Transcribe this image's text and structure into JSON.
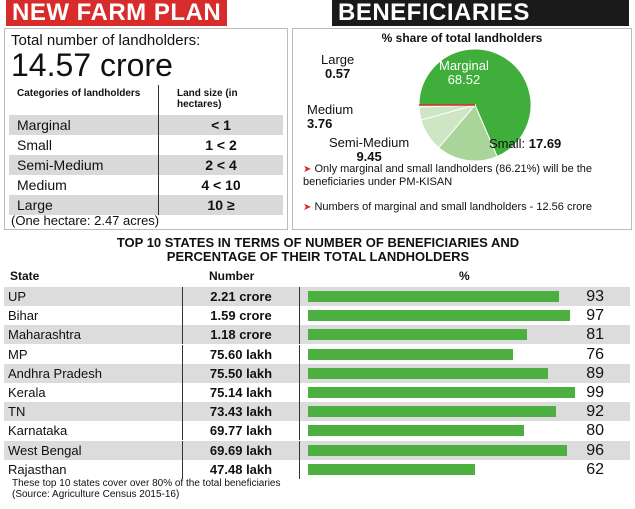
{
  "header": {
    "title_left": "NEW FARM PLAN",
    "title_right": "BENEFICIARIES"
  },
  "landholders": {
    "total_label": "Total number of landholders:",
    "total_value": "14.57 crore",
    "table_header": {
      "category": "Categories of landholders",
      "size": "Land size (in hectares)"
    },
    "rows": [
      {
        "category": "Marginal",
        "size": "< 1"
      },
      {
        "category": "Small",
        "size": "1 < 2"
      },
      {
        "category": "Semi-Medium",
        "size": "2 < 4"
      },
      {
        "category": "Medium",
        "size": "4 < 10"
      },
      {
        "category": "Large",
        "size": "10 ≥"
      }
    ],
    "note": "(One hectare: 2.47 acres)"
  },
  "pie": {
    "notes": [
      "Only marginal and small landholders (86.21%) will be the beneficiaries under PM-KISAN",
      "Numbers of marginal and small landholders - 12.56 crore"
    ]
  },
  "states_section": {
    "title_line1": "TOP 10 STATES IN TERMS OF NUMBER OF BENEFICIARIES AND",
    "title_line2": "PERCENTAGE OF THEIR TOTAL LANDHOLDERS",
    "col_state": "State",
    "col_number": "Number",
    "col_pct": "%",
    "footnote_line1": "These top 10 states cover over 80% of the total beneficiaries",
    "footnote_line2": "(Source: Agriculture Census 2015-16)"
  },
  "colors": {
    "accent_red": "#d82b2b",
    "bar_green": "#4daf3f",
    "pie_dark": "#3fae3a",
    "pie_light": "#a9d49a",
    "pie_lighter": "#cfe6c4"
  },
  "chart_data": [
    {
      "type": "pie",
      "title": "% share of total landholders",
      "labels": [
        "Marginal",
        "Small",
        "Semi-Medium",
        "Medium",
        "Large"
      ],
      "values": [
        68.52,
        17.69,
        9.45,
        3.76,
        0.57
      ]
    },
    {
      "type": "bar",
      "categories": [
        "UP",
        "Bihar",
        "Maharashtra",
        "MP",
        "Andhra Pradesh",
        "Kerala",
        "TN",
        "Karnataka",
        "West Bengal",
        "Rajasthan"
      ],
      "numbers": [
        "2.21 crore",
        "1.59 crore",
        "1.18 crore",
        "75.60 lakh",
        "75.50 lakh",
        "75.14 lakh",
        "73.43 lakh",
        "69.77 lakh",
        "69.69 lakh",
        "47.48 lakh"
      ],
      "values": [
        93,
        97,
        81,
        76,
        89,
        99,
        92,
        80,
        96,
        62
      ],
      "ylim": [
        0,
        100
      ]
    }
  ]
}
